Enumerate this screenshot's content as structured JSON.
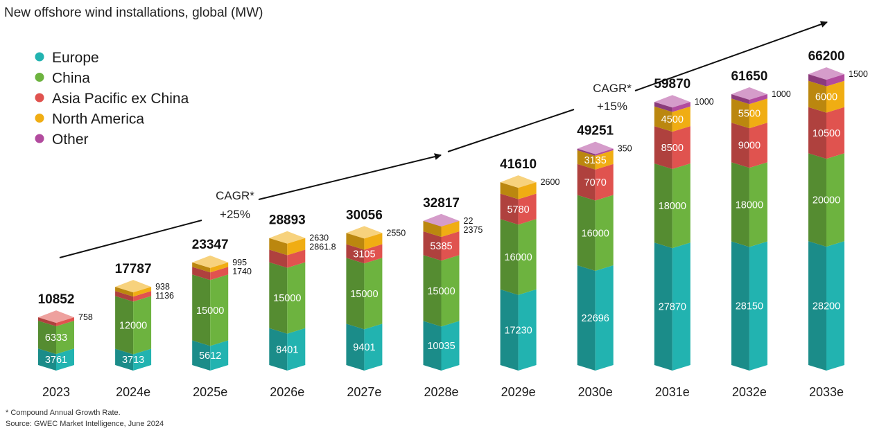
{
  "colors": {
    "Europe": "#22b3b0",
    "China": "#6db33f",
    "Asia Pacific ex China": "#e0534f",
    "North America": "#f0ad13",
    "Other": "#b24b9e"
  },
  "chart_data": {
    "type": "bar",
    "stacked": true,
    "title": "New offshore wind installations, global (MW)",
    "categories": [
      "2023",
      "2024e",
      "2025e",
      "2026e",
      "2027e",
      "2028e",
      "2029e",
      "2030e",
      "2031e",
      "2032e",
      "2033e"
    ],
    "series": [
      {
        "name": "Europe",
        "values": [
          3761,
          3713,
          5612,
          8401,
          9401,
          10035,
          17230,
          22696,
          27870,
          28150,
          28200
        ]
      },
      {
        "name": "China",
        "values": [
          6333,
          12000,
          15000,
          15000,
          15000,
          15000,
          16000,
          16000,
          18000,
          18000,
          20000
        ]
      },
      {
        "name": "Asia Pacific ex China",
        "values": [
          758,
          1136,
          1740,
          2861.8,
          3105,
          5385,
          5780,
          7070,
          8500,
          9000,
          10500
        ]
      },
      {
        "name": "North America",
        "values": [
          null,
          938,
          995,
          2630,
          2550,
          2375,
          2600,
          3135,
          4500,
          5500,
          6000
        ]
      },
      {
        "name": "Other",
        "values": [
          null,
          null,
          null,
          null,
          null,
          22,
          null,
          350,
          1000,
          1000,
          1500
        ]
      }
    ],
    "totals": [
      10852,
      17787,
      23347,
      28893,
      30056,
      32817,
      41610,
      49251,
      59870,
      61650,
      66200
    ],
    "segment_labels": [
      {
        "inside": [
          "3761",
          "6333"
        ],
        "side": [
          "758"
        ]
      },
      {
        "inside": [
          "3713",
          "12000"
        ],
        "side": [
          "938",
          "1136"
        ]
      },
      {
        "inside": [
          "5612",
          "15000"
        ],
        "side": [
          "995",
          "1740"
        ]
      },
      {
        "inside": [
          "8401",
          "15000"
        ],
        "side": [
          "2630",
          "2861.8"
        ]
      },
      {
        "inside": [
          "9401",
          "15000",
          "3105"
        ],
        "side": [
          "2550"
        ]
      },
      {
        "inside": [
          "10035",
          "15000",
          "5385"
        ],
        "side": [
          "22",
          "2375"
        ]
      },
      {
        "inside": [
          "17230",
          "16000",
          "5780"
        ],
        "side": [
          "2600"
        ]
      },
      {
        "inside": [
          "22696",
          "16000",
          "7070",
          "3135"
        ],
        "side": [
          "350"
        ]
      },
      {
        "inside": [
          "27870",
          "18000",
          "8500",
          "4500"
        ],
        "side": [
          "1000"
        ]
      },
      {
        "inside": [
          "28150",
          "18000",
          "9000",
          "5500"
        ],
        "side": [
          "1000"
        ]
      },
      {
        "inside": [
          "28200",
          "20000",
          "10500",
          "6000"
        ],
        "side": [
          "1500"
        ]
      }
    ],
    "legend": [
      "Europe",
      "China",
      "Asia Pacific ex China",
      "North America",
      "Other"
    ],
    "legend_position": "top-left",
    "annotations": [
      {
        "text": "CAGR*",
        "subtext": "+25%"
      },
      {
        "text": "CAGR*",
        "subtext": "+15%"
      }
    ],
    "grid": false
  },
  "footnotes": {
    "line1": "* Compound Annual Growth Rate.",
    "line2": "Source: GWEC Market Intelligence, June 2024"
  }
}
